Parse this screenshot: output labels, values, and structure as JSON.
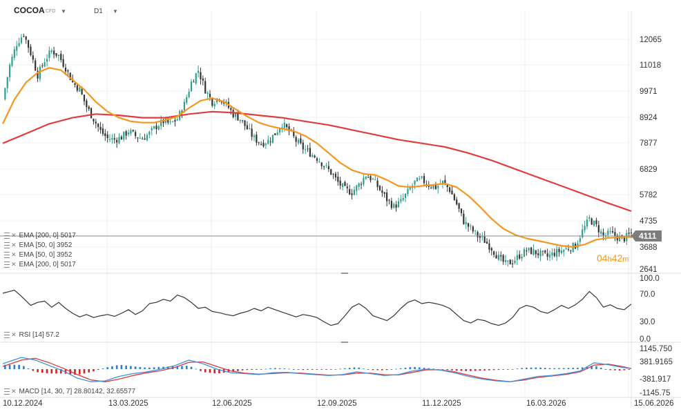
{
  "header": {
    "symbol": "COCOA",
    "symbol_tag": "CFD",
    "timeframe": "D1",
    "symbol_menu_icon": "chevron-down-icon",
    "timeframe_menu_icon": "chevron-down-icon"
  },
  "price_panel": {
    "price_ticks": [
      "12065",
      "11018",
      "9971",
      "8924",
      "7877",
      "6829",
      "5782",
      "4735",
      "3688",
      "2641"
    ],
    "current_price_label": "4111",
    "countdown_hours": "04",
    "countdown_hours_unit": "h",
    "countdown_minutes": "42",
    "countdown_minutes_unit": "m",
    "indicator_labels": [
      "EMA [200, 0] 5017",
      "EMA [50, 0] 3952",
      "EMA [50, 0] 3952",
      "EMA [200, 0] 5017"
    ]
  },
  "rsi_panel": {
    "label": "RSI [14] 57.2",
    "ticks": [
      "100.0",
      "70.0",
      "30.0",
      "0.0"
    ]
  },
  "macd_panel": {
    "label": "MACD [14, 30, 7] 28.80142, 32.65577",
    "ticks": [
      "1145.750",
      "381.9165",
      "-381.917",
      "-1145.75"
    ]
  },
  "x_axis": {
    "labels": [
      "10.12.2024",
      "13.03.2025",
      "12.06.2025",
      "12.09.2025",
      "11.12.2025",
      "16.03.2026",
      "15.06.2026"
    ]
  },
  "colors": {
    "candle_up": "#2e9e8f",
    "candle_down": "#333333",
    "ema50": "#f5961e",
    "ema200": "#e03c3c",
    "rsi": "#333333",
    "macd_line": "#3d8fe0",
    "macd_signal": "#d93a3a",
    "hist_pos": "#2a7fd0",
    "hist_neg": "#d52020",
    "countdown": "#f5961e",
    "price_label_bg": "#7d7d7d"
  },
  "chart_data": {
    "type": "candlestick",
    "price_axis": {
      "ylim": [
        2641,
        12065
      ]
    },
    "rsi_axis": {
      "ylim": [
        0,
        100
      ],
      "levels": [
        30,
        70
      ]
    },
    "macd_axis": {
      "ylim": [
        -1145.75,
        1145.75
      ]
    },
    "x_dates": [
      "10.12.2024",
      "13.03.2025",
      "12.06.2025",
      "12.09.2025",
      "11.12.2025",
      "16.03.2026",
      "15.06.2026"
    ],
    "close_path": [
      [
        0,
        9600
      ],
      [
        3,
        11000
      ],
      [
        6,
        11900
      ],
      [
        9,
        12300
      ],
      [
        12,
        11500
      ],
      [
        15,
        10600
      ],
      [
        18,
        11200
      ],
      [
        21,
        11600
      ],
      [
        24,
        11400
      ],
      [
        27,
        10900
      ],
      [
        30,
        10300
      ],
      [
        33,
        10000
      ],
      [
        36,
        9300
      ],
      [
        39,
        8800
      ],
      [
        42,
        8300
      ],
      [
        45,
        8000
      ],
      [
        48,
        7950
      ],
      [
        51,
        8050
      ],
      [
        54,
        8300
      ],
      [
        57,
        8100
      ],
      [
        60,
        8000
      ],
      [
        63,
        8200
      ],
      [
        66,
        8500
      ],
      [
        69,
        8700
      ],
      [
        72,
        8600
      ],
      [
        75,
        8800
      ],
      [
        78,
        9400
      ],
      [
        81,
        10300
      ],
      [
        84,
        10800
      ],
      [
        87,
        10000
      ],
      [
        90,
        9500
      ],
      [
        93,
        9700
      ],
      [
        96,
        9400
      ],
      [
        99,
        9000
      ],
      [
        102,
        8800
      ],
      [
        105,
        8400
      ],
      [
        108,
        8000
      ],
      [
        111,
        7800
      ],
      [
        114,
        7900
      ],
      [
        117,
        8200
      ],
      [
        120,
        8600
      ],
      [
        123,
        8300
      ],
      [
        126,
        7900
      ],
      [
        129,
        7600
      ],
      [
        132,
        7400
      ],
      [
        135,
        7200
      ],
      [
        138,
        6900
      ],
      [
        141,
        6600
      ],
      [
        144,
        6200
      ],
      [
        147,
        5900
      ],
      [
        150,
        5800
      ],
      [
        153,
        6100
      ],
      [
        156,
        6500
      ],
      [
        159,
        6300
      ],
      [
        162,
        5900
      ],
      [
        165,
        5500
      ],
      [
        168,
        5200
      ],
      [
        171,
        5400
      ],
      [
        174,
        5800
      ],
      [
        177,
        6200
      ],
      [
        180,
        6300
      ],
      [
        183,
        6100
      ],
      [
        186,
        6000
      ],
      [
        189,
        6200
      ],
      [
        192,
        5900
      ],
      [
        195,
        5300
      ],
      [
        198,
        4600
      ],
      [
        201,
        4300
      ],
      [
        204,
        4000
      ],
      [
        207,
        3800
      ],
      [
        210,
        3500
      ],
      [
        213,
        3100
      ],
      [
        216,
        2850
      ],
      [
        219,
        2950
      ],
      [
        222,
        3200
      ],
      [
        225,
        3400
      ],
      [
        228,
        3350
      ],
      [
        231,
        3250
      ],
      [
        234,
        3150
      ],
      [
        237,
        3300
      ],
      [
        240,
        3400
      ],
      [
        243,
        3500
      ],
      [
        246,
        3600
      ],
      [
        249,
        4200
      ],
      [
        252,
        4700
      ],
      [
        255,
        4400
      ],
      [
        258,
        4000
      ],
      [
        261,
        4100
      ],
      [
        264,
        3950
      ],
      [
        267,
        3900
      ],
      [
        270,
        4111
      ]
    ],
    "ema50_path": [
      [
        0,
        8600
      ],
      [
        5,
        9600
      ],
      [
        10,
        10300
      ],
      [
        15,
        10700
      ],
      [
        20,
        10900
      ],
      [
        25,
        10800
      ],
      [
        30,
        10400
      ],
      [
        35,
        10000
      ],
      [
        40,
        9500
      ],
      [
        45,
        9100
      ],
      [
        50,
        8850
      ],
      [
        55,
        8700
      ],
      [
        60,
        8650
      ],
      [
        65,
        8650
      ],
      [
        70,
        8750
      ],
      [
        75,
        8900
      ],
      [
        80,
        9250
      ],
      [
        85,
        9550
      ],
      [
        90,
        9650
      ],
      [
        95,
        9500
      ],
      [
        100,
        9200
      ],
      [
        105,
        8900
      ],
      [
        110,
        8650
      ],
      [
        115,
        8500
      ],
      [
        120,
        8400
      ],
      [
        125,
        8300
      ],
      [
        130,
        8100
      ],
      [
        135,
        7800
      ],
      [
        140,
        7400
      ],
      [
        145,
        7000
      ],
      [
        150,
        6700
      ],
      [
        155,
        6550
      ],
      [
        160,
        6500
      ],
      [
        165,
        6300
      ],
      [
        170,
        6050
      ],
      [
        175,
        6000
      ],
      [
        180,
        6050
      ],
      [
        185,
        6100
      ],
      [
        190,
        6150
      ],
      [
        195,
        6000
      ],
      [
        200,
        5650
      ],
      [
        205,
        5200
      ],
      [
        210,
        4700
      ],
      [
        215,
        4300
      ],
      [
        220,
        4050
      ],
      [
        225,
        3900
      ],
      [
        230,
        3800
      ],
      [
        235,
        3700
      ],
      [
        240,
        3600
      ],
      [
        245,
        3550
      ],
      [
        250,
        3650
      ],
      [
        255,
        3850
      ],
      [
        260,
        3920
      ],
      [
        265,
        3950
      ],
      [
        270,
        3952
      ]
    ],
    "ema200_path": [
      [
        0,
        7800
      ],
      [
        10,
        8200
      ],
      [
        20,
        8600
      ],
      [
        30,
        8850
      ],
      [
        40,
        9000
      ],
      [
        50,
        8950
      ],
      [
        60,
        8850
      ],
      [
        70,
        8850
      ],
      [
        80,
        9000
      ],
      [
        90,
        9100
      ],
      [
        100,
        9050
      ],
      [
        110,
        8950
      ],
      [
        120,
        8850
      ],
      [
        130,
        8700
      ],
      [
        140,
        8550
      ],
      [
        150,
        8350
      ],
      [
        160,
        8150
      ],
      [
        170,
        7950
      ],
      [
        180,
        7800
      ],
      [
        190,
        7650
      ],
      [
        200,
        7400
      ],
      [
        210,
        7100
      ],
      [
        220,
        6750
      ],
      [
        230,
        6400
      ],
      [
        240,
        6050
      ],
      [
        250,
        5700
      ],
      [
        260,
        5350
      ],
      [
        270,
        5017
      ]
    ],
    "rsi_path": [
      [
        0,
        75
      ],
      [
        5,
        80
      ],
      [
        8,
        70
      ],
      [
        12,
        55
      ],
      [
        15,
        60
      ],
      [
        18,
        62
      ],
      [
        21,
        52
      ],
      [
        24,
        60
      ],
      [
        27,
        50
      ],
      [
        30,
        42
      ],
      [
        33,
        36
      ],
      [
        36,
        40
      ],
      [
        39,
        35
      ],
      [
        42,
        38
      ],
      [
        45,
        40
      ],
      [
        48,
        37
      ],
      [
        51,
        42
      ],
      [
        54,
        48
      ],
      [
        57,
        40
      ],
      [
        60,
        46
      ],
      [
        63,
        58
      ],
      [
        66,
        60
      ],
      [
        69,
        65
      ],
      [
        72,
        62
      ],
      [
        75,
        72
      ],
      [
        78,
        68
      ],
      [
        81,
        60
      ],
      [
        84,
        50
      ],
      [
        87,
        52
      ],
      [
        90,
        45
      ],
      [
        93,
        43
      ],
      [
        96,
        40
      ],
      [
        99,
        38
      ],
      [
        102,
        42
      ],
      [
        105,
        45
      ],
      [
        108,
        50
      ],
      [
        111,
        46
      ],
      [
        114,
        52
      ],
      [
        117,
        48
      ],
      [
        120,
        44
      ],
      [
        123,
        40
      ],
      [
        126,
        36
      ],
      [
        129,
        40
      ],
      [
        132,
        38
      ],
      [
        135,
        35
      ],
      [
        138,
        28
      ],
      [
        141,
        22
      ],
      [
        144,
        25
      ],
      [
        147,
        38
      ],
      [
        150,
        52
      ],
      [
        153,
        58
      ],
      [
        156,
        50
      ],
      [
        159,
        38
      ],
      [
        162,
        34
      ],
      [
        165,
        30
      ],
      [
        168,
        38
      ],
      [
        171,
        50
      ],
      [
        174,
        60
      ],
      [
        177,
        64
      ],
      [
        180,
        58
      ],
      [
        183,
        60
      ],
      [
        186,
        58
      ],
      [
        189,
        55
      ],
      [
        192,
        50
      ],
      [
        195,
        40
      ],
      [
        198,
        30
      ],
      [
        201,
        26
      ],
      [
        204,
        32
      ],
      [
        207,
        30
      ],
      [
        210,
        25
      ],
      [
        213,
        22
      ],
      [
        216,
        26
      ],
      [
        219,
        35
      ],
      [
        222,
        50
      ],
      [
        225,
        55
      ],
      [
        228,
        52
      ],
      [
        231,
        45
      ],
      [
        234,
        42
      ],
      [
        237,
        48
      ],
      [
        240,
        55
      ],
      [
        243,
        50
      ],
      [
        246,
        56
      ],
      [
        249,
        65
      ],
      [
        252,
        78
      ],
      [
        255,
        68
      ],
      [
        258,
        52
      ],
      [
        261,
        56
      ],
      [
        264,
        50
      ],
      [
        267,
        48
      ],
      [
        270,
        57.2
      ]
    ],
    "macd_path": [
      [
        0,
        300
      ],
      [
        8,
        650
      ],
      [
        14,
        500
      ],
      [
        20,
        200
      ],
      [
        26,
        -100
      ],
      [
        32,
        -500
      ],
      [
        38,
        -700
      ],
      [
        44,
        -650
      ],
      [
        50,
        -400
      ],
      [
        56,
        -250
      ],
      [
        62,
        -150
      ],
      [
        68,
        0
      ],
      [
        74,
        200
      ],
      [
        80,
        500
      ],
      [
        86,
        300
      ],
      [
        92,
        0
      ],
      [
        98,
        -200
      ],
      [
        104,
        -250
      ],
      [
        110,
        -300
      ],
      [
        116,
        -200
      ],
      [
        122,
        -180
      ],
      [
        128,
        -250
      ],
      [
        134,
        -300
      ],
      [
        140,
        -350
      ],
      [
        146,
        -300
      ],
      [
        152,
        -150
      ],
      [
        158,
        -250
      ],
      [
        164,
        -350
      ],
      [
        170,
        -300
      ],
      [
        176,
        -100
      ],
      [
        182,
        0
      ],
      [
        188,
        -50
      ],
      [
        194,
        -200
      ],
      [
        200,
        -400
      ],
      [
        206,
        -550
      ],
      [
        212,
        -650
      ],
      [
        218,
        -700
      ],
      [
        224,
        -550
      ],
      [
        230,
        -400
      ],
      [
        236,
        -350
      ],
      [
        242,
        -250
      ],
      [
        248,
        -100
      ],
      [
        254,
        350
      ],
      [
        260,
        250
      ],
      [
        266,
        100
      ],
      [
        270,
        28.80142
      ]
    ],
    "signal_path": [
      [
        0,
        150
      ],
      [
        8,
        500
      ],
      [
        14,
        600
      ],
      [
        20,
        350
      ],
      [
        26,
        50
      ],
      [
        32,
        -300
      ],
      [
        38,
        -600
      ],
      [
        44,
        -700
      ],
      [
        50,
        -550
      ],
      [
        56,
        -350
      ],
      [
        62,
        -200
      ],
      [
        68,
        -80
      ],
      [
        74,
        100
      ],
      [
        80,
        380
      ],
      [
        86,
        400
      ],
      [
        92,
        150
      ],
      [
        98,
        -100
      ],
      [
        104,
        -220
      ],
      [
        110,
        -280
      ],
      [
        116,
        -240
      ],
      [
        122,
        -200
      ],
      [
        128,
        -220
      ],
      [
        134,
        -280
      ],
      [
        140,
        -330
      ],
      [
        146,
        -320
      ],
      [
        152,
        -220
      ],
      [
        158,
        -220
      ],
      [
        164,
        -310
      ],
      [
        170,
        -320
      ],
      [
        176,
        -180
      ],
      [
        182,
        -40
      ],
      [
        188,
        -40
      ],
      [
        194,
        -150
      ],
      [
        200,
        -330
      ],
      [
        206,
        -500
      ],
      [
        212,
        -620
      ],
      [
        218,
        -690
      ],
      [
        224,
        -600
      ],
      [
        230,
        -460
      ],
      [
        236,
        -380
      ],
      [
        242,
        -290
      ],
      [
        248,
        -150
      ],
      [
        254,
        220
      ],
      [
        260,
        280
      ],
      [
        266,
        150
      ],
      [
        270,
        32.65577
      ]
    ]
  }
}
